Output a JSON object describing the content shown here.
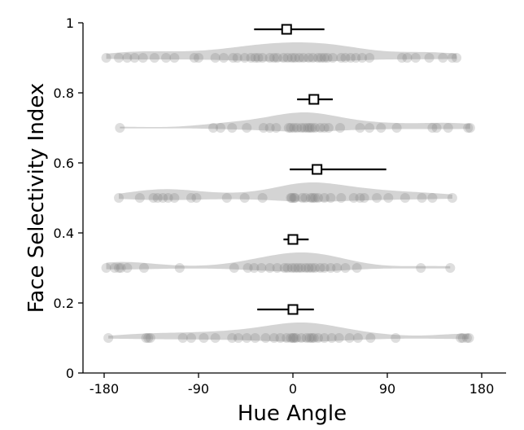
{
  "chart_data": {
    "type": "scatter",
    "xlabel": "Hue Angle",
    "ylabel": "Face Selectivity Index",
    "xlim": [
      -195,
      195
    ],
    "ylim": [
      0,
      1
    ],
    "xticks": [
      -180,
      -90,
      0,
      90,
      180
    ],
    "xtick_labels": [
      "-180",
      "-90",
      "0",
      "90",
      "180"
    ],
    "yticks": [
      0,
      0.2,
      0.4,
      0.6,
      0.8,
      1
    ],
    "ytick_labels": [
      "0",
      "0.2",
      "0.4",
      "0.6",
      "0.8",
      "1"
    ],
    "colors": {
      "violin": "#bdbdbd",
      "points": "#7a7a7a",
      "mean_marker": "#000000"
    },
    "groups": [
      {
        "y": 0.1,
        "points": [
          -176,
          -140,
          -138,
          -136,
          -105,
          -97,
          -85,
          -74,
          -58,
          -52,
          -44,
          -36,
          -26,
          -18,
          -12,
          -6,
          -2,
          0,
          1,
          3,
          8,
          13,
          16,
          18,
          20,
          24,
          30,
          37,
          44,
          54,
          62,
          74,
          98,
          160,
          162,
          166,
          168
        ],
        "mean": 0,
        "err_low": -34,
        "err_high": 20
      },
      {
        "y": 0.3,
        "points": [
          -178,
          -170,
          -166,
          -164,
          -158,
          -142,
          -108,
          -56,
          -43,
          -37,
          -30,
          -22,
          -15,
          -8,
          -5,
          -1,
          2,
          5,
          8,
          12,
          15,
          18,
          21,
          26,
          30,
          36,
          42,
          50,
          61,
          122,
          150
        ],
        "mean": 0,
        "err_low": -9,
        "err_high": 15
      },
      {
        "y": 0.5,
        "points": [
          -166,
          -146,
          -133,
          -129,
          -124,
          -119,
          -113,
          -97,
          -92,
          -63,
          -46,
          -29,
          -2,
          -1,
          1,
          2,
          9,
          12,
          17,
          19,
          21,
          24,
          30,
          36,
          46,
          58,
          64,
          68,
          80,
          91,
          107,
          123,
          133,
          152
        ],
        "mean": 23,
        "err_low": -3,
        "err_high": 89
      },
      {
        "y": 0.7,
        "points": [
          -165,
          -76,
          -69,
          -58,
          -44,
          -28,
          -22,
          -16,
          -4,
          -2,
          1,
          4,
          8,
          11,
          14,
          16,
          18,
          21,
          26,
          30,
          34,
          45,
          64,
          73,
          84,
          99,
          133,
          137,
          148,
          167,
          169
        ],
        "mean": 20,
        "err_low": 4,
        "err_high": 38
      },
      {
        "y": 0.9,
        "points": [
          -178,
          -166,
          -158,
          -151,
          -143,
          -132,
          -121,
          -113,
          -94,
          -90,
          -74,
          -66,
          -57,
          -53,
          -46,
          -40,
          -36,
          -33,
          -29,
          -22,
          -18,
          -15,
          -9,
          -5,
          -1,
          2,
          6,
          10,
          15,
          19,
          24,
          27,
          30,
          33,
          38,
          46,
          50,
          55,
          60,
          66,
          73,
          104,
          109,
          117,
          130,
          143,
          152,
          156
        ],
        "mean": -6,
        "err_low": -37,
        "err_high": 30
      }
    ]
  }
}
